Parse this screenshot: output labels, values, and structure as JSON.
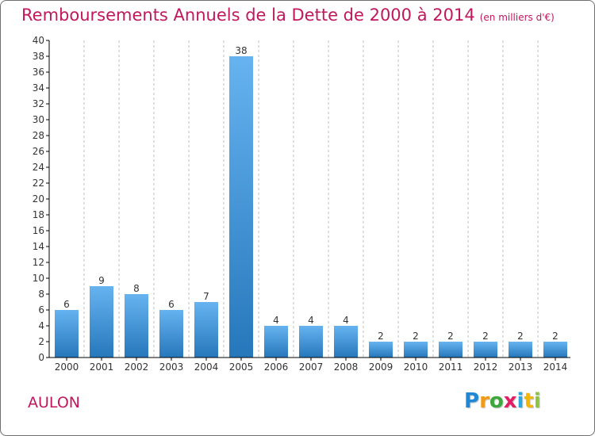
{
  "title": "Remboursements Annuels de la Dette de 2000 à 2014",
  "title_unit": "(en milliers d'€)",
  "commune": "AULON",
  "brand": {
    "letters": [
      "P",
      "r",
      "o",
      "x",
      "i",
      "t",
      "i"
    ],
    "colors": [
      "#1e88d4",
      "#f29a12",
      "#3aa83a",
      "#e01e64",
      "#2aa6e0",
      "#f2b705",
      "#8cc63f"
    ]
  },
  "colors": {
    "accent": "#c0175d",
    "bar_light": "#66b3f0",
    "bar_dark": "#2677bb",
    "axis": "#000000",
    "grid": "#bfbfbf"
  },
  "chart_data": {
    "type": "bar",
    "categories": [
      "2000",
      "2001",
      "2002",
      "2003",
      "2004",
      "2005",
      "2006",
      "2007",
      "2008",
      "2009",
      "2010",
      "2011",
      "2012",
      "2013",
      "2014"
    ],
    "values": [
      6,
      9,
      8,
      6,
      7,
      38,
      4,
      4,
      4,
      2,
      2,
      2,
      2,
      2,
      2
    ],
    "ylim": [
      0,
      40
    ],
    "yticks": [
      0,
      2,
      4,
      6,
      8,
      10,
      12,
      14,
      16,
      18,
      20,
      22,
      24,
      26,
      28,
      30,
      32,
      34,
      36,
      38,
      40
    ],
    "grid": "vertical dashed",
    "xlabel": "",
    "ylabel": ""
  }
}
